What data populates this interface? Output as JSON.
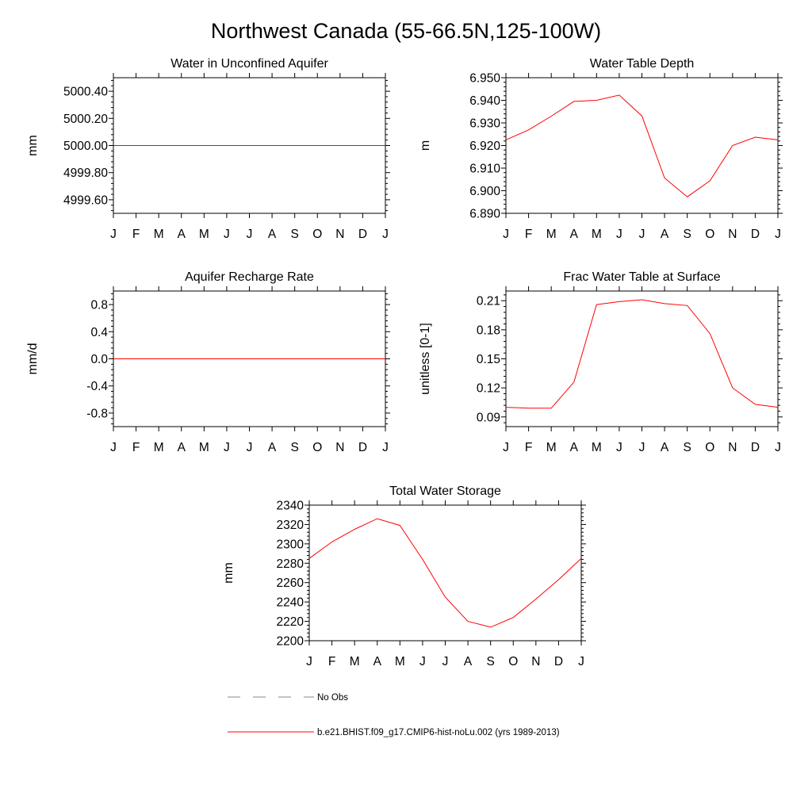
{
  "figure": {
    "title": "Northwest Canada (55-66.5N,125-100W)"
  },
  "colors": {
    "model_line": "#ff0000",
    "obs_line": "#888888",
    "axes": "#000000"
  },
  "chart_data": [
    {
      "type": "line",
      "title": "Water in Unconfined Aquifer",
      "xlabel": "",
      "ylabel": "mm",
      "categories": [
        "J",
        "F",
        "M",
        "A",
        "M",
        "J",
        "J",
        "A",
        "S",
        "O",
        "N",
        "D",
        "J"
      ],
      "ylim": [
        4999.5,
        5000.5
      ],
      "yticks": [
        4999.6,
        4999.8,
        5000.0,
        5000.2,
        5000.4
      ],
      "ytick_labels": [
        "4999.60",
        "4999.80",
        "5000.00",
        "5000.20",
        "5000.40"
      ],
      "series": [
        {
          "name": "b.e21.BHIST.f09_g17.CMIP6-hist-noLu.002 (yrs 1989-2013)",
          "values": [
            5000,
            5000,
            5000,
            5000,
            5000,
            5000,
            5000,
            5000,
            5000,
            5000,
            5000,
            5000,
            5000
          ]
        }
      ]
    },
    {
      "type": "line",
      "title": "Water Table Depth",
      "xlabel": "",
      "ylabel": "m",
      "categories": [
        "J",
        "F",
        "M",
        "A",
        "M",
        "J",
        "J",
        "A",
        "S",
        "O",
        "N",
        "D",
        "J"
      ],
      "ylim": [
        6.89,
        6.95
      ],
      "yticks": [
        6.89,
        6.9,
        6.91,
        6.92,
        6.93,
        6.94,
        6.95
      ],
      "ytick_labels": [
        "6.890",
        "6.900",
        "6.910",
        "6.920",
        "6.930",
        "6.940",
        "6.950"
      ],
      "series": [
        {
          "name": "b.e21.BHIST.f09_g17.CMIP6-hist-noLu.002 (yrs 1989-2013)",
          "values": [
            6.9225,
            6.9269,
            6.933,
            6.9395,
            6.94,
            6.9423,
            6.9331,
            6.9056,
            6.8973,
            6.9044,
            6.92,
            6.9237,
            6.9225
          ]
        }
      ]
    },
    {
      "type": "line",
      "title": "Aquifer Recharge Rate",
      "xlabel": "",
      "ylabel": "mm/d",
      "categories": [
        "J",
        "F",
        "M",
        "A",
        "M",
        "J",
        "J",
        "A",
        "S",
        "O",
        "N",
        "D",
        "J"
      ],
      "ylim": [
        -1.0,
        1.0
      ],
      "yticks": [
        -0.8,
        -0.4,
        0.0,
        0.4,
        0.8
      ],
      "ytick_labels": [
        "-0.8",
        "-0.4",
        "0.0",
        "0.4",
        "0.8"
      ],
      "series": [
        {
          "name": "b.e21.BHIST.f09_g17.CMIP6-hist-noLu.002 (yrs 1989-2013)",
          "values": [
            0,
            0,
            0,
            0,
            0,
            0,
            0,
            0,
            0,
            0,
            0,
            0,
            0
          ]
        }
      ]
    },
    {
      "type": "line",
      "title": "Frac Water Table at Surface",
      "xlabel": "",
      "ylabel": "unitless [0-1]",
      "categories": [
        "J",
        "F",
        "M",
        "A",
        "M",
        "J",
        "J",
        "A",
        "S",
        "O",
        "N",
        "D",
        "J"
      ],
      "ylim": [
        0.08,
        0.22
      ],
      "yticks": [
        0.09,
        0.12,
        0.15,
        0.18,
        0.21
      ],
      "ytick_labels": [
        "0.09",
        "0.12",
        "0.15",
        "0.18",
        "0.21"
      ],
      "series": [
        {
          "name": "b.e21.BHIST.f09_g17.CMIP6-hist-noLu.002 (yrs 1989-2013)",
          "values": [
            0.1,
            0.099,
            0.099,
            0.126,
            0.206,
            0.209,
            0.211,
            0.207,
            0.205,
            0.176,
            0.12,
            0.103,
            0.1
          ]
        }
      ]
    },
    {
      "type": "line",
      "title": "Total Water Storage",
      "xlabel": "",
      "ylabel": "mm",
      "categories": [
        "J",
        "F",
        "M",
        "A",
        "M",
        "J",
        "J",
        "A",
        "S",
        "O",
        "N",
        "D",
        "J"
      ],
      "ylim": [
        2200,
        2340
      ],
      "yticks": [
        2200,
        2220,
        2240,
        2260,
        2280,
        2300,
        2320,
        2340
      ],
      "ytick_labels": [
        "2200",
        "2220",
        "2240",
        "2260",
        "2280",
        "2300",
        "2320",
        "2340"
      ],
      "series": [
        {
          "name": "b.e21.BHIST.f09_g17.CMIP6-hist-noLu.002 (yrs 1989-2013)",
          "values": [
            2285,
            2302,
            2315,
            2326,
            2319,
            2284,
            2245,
            2220,
            2214,
            2224,
            2243,
            2263,
            2285
          ]
        }
      ]
    }
  ],
  "legend": {
    "items": [
      {
        "label": "No Obs",
        "style": "dashed",
        "color": "#888888"
      },
      {
        "label": "b.e21.BHIST.f09_g17.CMIP6-hist-noLu.002 (yrs 1989-2013)",
        "style": "solid",
        "color": "#ff0000"
      }
    ]
  }
}
